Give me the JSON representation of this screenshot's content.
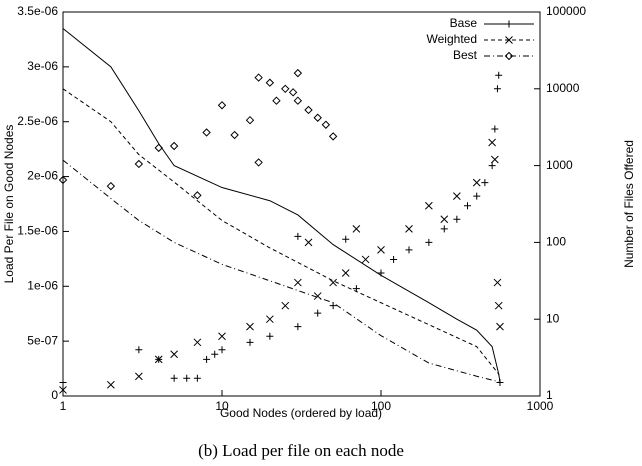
{
  "chart_data": {
    "type": "line",
    "xlabel": "Good Nodes (ordered by load)",
    "ylabel": "Load Per File on Good Nodes",
    "y2label": "Number of Files Offered",
    "caption": "(b) Load per file on each node",
    "xscale": "log",
    "y2scale": "log",
    "xlim": [
      1,
      1000
    ],
    "xticks": [
      1,
      10,
      100,
      1000
    ],
    "ylim": [
      0,
      3.5e-06
    ],
    "yticks": [
      0,
      {
        "value": 5e-07,
        "label": "5e-07"
      },
      {
        "value": 1e-06,
        "label": "1e-06"
      },
      {
        "value": 1.5e-06,
        "label": "1.5e-06"
      },
      {
        "value": 2e-06,
        "label": "2e-06"
      },
      {
        "value": 2.5e-06,
        "label": "2.5e-06"
      },
      {
        "value": 3e-06,
        "label": "3e-06"
      },
      {
        "value": 3.5e-06,
        "label": "3.5e-06"
      }
    ],
    "y2lim": [
      1,
      100000
    ],
    "y2ticks": [
      1,
      10,
      100,
      1000,
      10000,
      100000
    ],
    "legend": "top-right",
    "series": [
      {
        "name": "Base",
        "color": "#000000",
        "dash": "none",
        "marker": "plus",
        "x": [
          1,
          2,
          3,
          4,
          5,
          10,
          20,
          30,
          50,
          100,
          200,
          300,
          400,
          500,
          550,
          560
        ],
        "values": [
          3.35e-06,
          3e-06,
          2.6e-06,
          2.3e-06,
          2.1e-06,
          1.9e-06,
          1.78e-06,
          1.65e-06,
          1.38e-06,
          1.1e-06,
          8.5e-07,
          7e-07,
          6e-07,
          4.5e-07,
          2e-07,
          1.3e-07
        ],
        "points": {
          "axis": "y2",
          "x": [
            1,
            3,
            4,
            5,
            6,
            7,
            8,
            9,
            10,
            15,
            20,
            30,
            40,
            50,
            70,
            100,
            120,
            150,
            200,
            250,
            300,
            350,
            400,
            450,
            500,
            520,
            540,
            550,
            560,
            30,
            60
          ],
          "values": [
            1.5,
            4,
            3,
            1.7,
            1.7,
            1.7,
            3,
            3.5,
            4,
            5,
            6,
            8,
            12,
            15,
            25,
            40,
            60,
            80,
            100,
            150,
            200,
            300,
            400,
            600,
            1000,
            3000,
            10000,
            15000,
            1.5,
            120,
            110
          ]
        }
      },
      {
        "name": "Weighted",
        "color": "#000000",
        "dash": "4,3",
        "marker": "cross",
        "x": [
          1,
          2,
          3,
          5,
          10,
          20,
          50,
          100,
          200,
          400,
          550,
          560
        ],
        "values": [
          2.8e-06,
          2.5e-06,
          2.2e-06,
          1.95e-06,
          1.6e-06,
          1.35e-06,
          1.05e-06,
          8.5e-07,
          6.5e-07,
          4.5e-07,
          2e-07,
          1.3e-07
        ],
        "points": {
          "axis": "y2",
          "x": [
            1,
            2,
            3,
            4,
            5,
            7,
            10,
            15,
            20,
            25,
            30,
            40,
            50,
            60,
            80,
            100,
            150,
            200,
            300,
            400,
            500,
            520,
            540,
            550,
            560,
            250,
            35,
            70
          ],
          "values": [
            1.2,
            1.4,
            1.8,
            3,
            3.5,
            5,
            6,
            8,
            10,
            15,
            30,
            20,
            30,
            40,
            60,
            80,
            150,
            300,
            400,
            600,
            2000,
            1200,
            30,
            15,
            8,
            200,
            100,
            150
          ]
        }
      },
      {
        "name": "Best",
        "color": "#000000",
        "dash": "6,3,1,3",
        "marker": "diamond",
        "x": [
          1,
          2,
          3,
          5,
          10,
          20,
          50,
          100,
          200,
          400,
          550
        ],
        "values": [
          2.15e-06,
          1.8e-06,
          1.6e-06,
          1.4e-06,
          1.2e-06,
          1.05e-06,
          8.5e-07,
          5.5e-07,
          3e-07,
          1.8e-07,
          1.3e-07
        ],
        "points": {
          "axis": "y2",
          "x": [
            1,
            2,
            3,
            4,
            5,
            7,
            8,
            10,
            12,
            15,
            17,
            17,
            20,
            25,
            30,
            30,
            35,
            40,
            45,
            50,
            28,
            22
          ],
          "values": [
            650,
            540,
            1050,
            1700,
            1800,
            410,
            2700,
            6100,
            2500,
            3900,
            1100,
            14000,
            12000,
            10000,
            16000,
            7000,
            5300,
            4200,
            3400,
            2400,
            9000,
            7000
          ]
        }
      }
    ]
  }
}
